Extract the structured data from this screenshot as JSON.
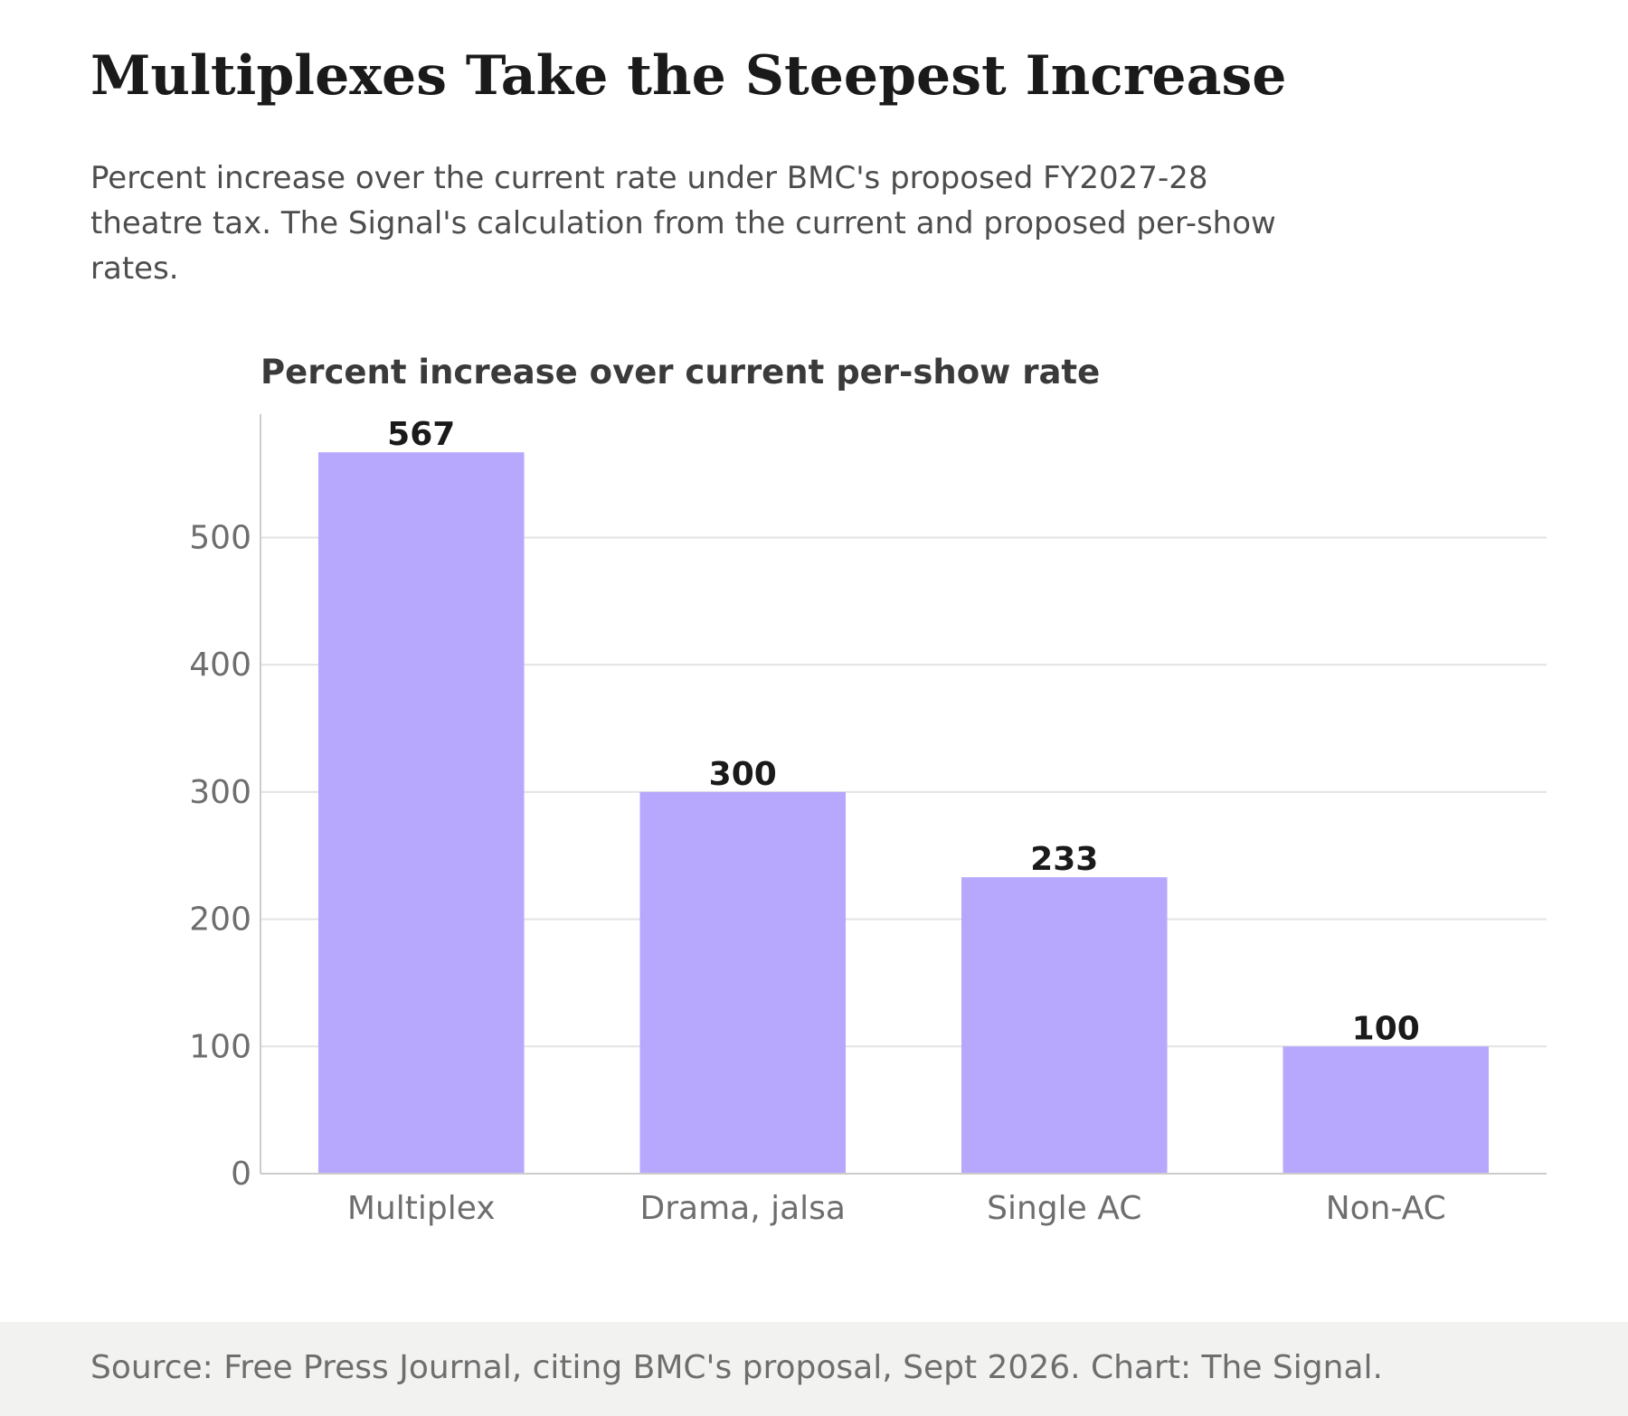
{
  "header": {
    "title": "Multiplexes Take the Steepest Increase",
    "subtitle": "Percent increase over the current rate under BMC's proposed FY2027-28 theatre tax. The Signal's calculation from the current and proposed per-show rates."
  },
  "chart_data": {
    "type": "bar",
    "title": "Percent increase over current per-show rate",
    "categories": [
      "Multiplex",
      "Drama, jalsa",
      "Single AC",
      "Non-AC"
    ],
    "values": [
      567,
      300,
      233,
      100
    ],
    "data_labels": [
      "567",
      "300",
      "233",
      "100"
    ],
    "yticks": [
      0,
      100,
      200,
      300,
      400,
      500
    ],
    "ylim": [
      0,
      597
    ],
    "xlabel": "",
    "ylabel": "",
    "grid": true,
    "bar_color": "#b8a8fd",
    "gridline_color": "#e3e3e3",
    "axis_color": "#cccccc",
    "tick_label_color": "#6e6e6e",
    "data_label_color": "#1a1a1a",
    "chart_title_color": "#3a3a3a"
  },
  "footer": {
    "source": "Source: Free Press Journal, citing BMC's proposal, Sept 2026. Chart: The Signal."
  }
}
